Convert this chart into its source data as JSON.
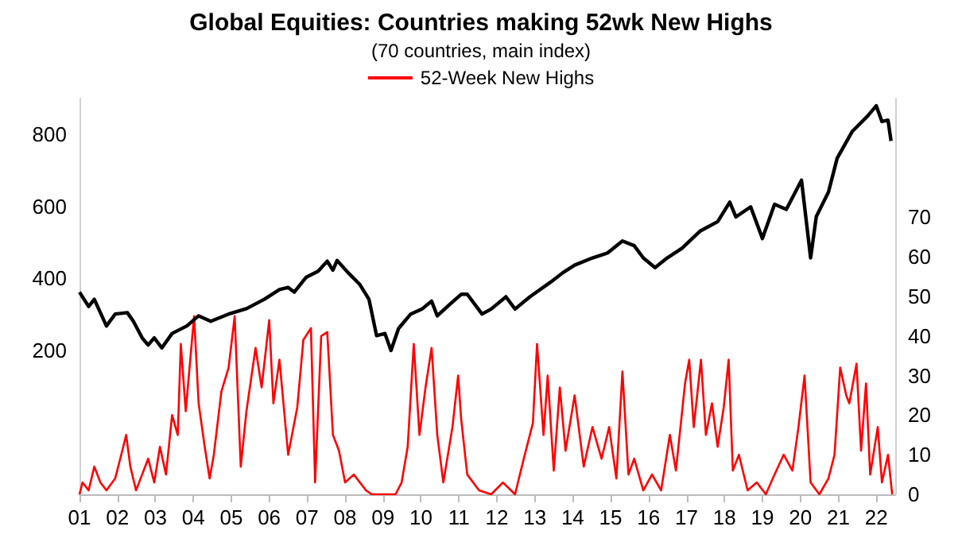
{
  "chart_data": {
    "type": "line",
    "title": "Global Equities: Countries making 52wk New Highs",
    "subtitle": "(70 countries, main index)",
    "xlim": [
      2001,
      2022.5
    ],
    "xticks": [
      {
        "value": 2001,
        "label": "01"
      },
      {
        "value": 2002,
        "label": "02"
      },
      {
        "value": 2003,
        "label": "03"
      },
      {
        "value": 2004,
        "label": "04"
      },
      {
        "value": 2005,
        "label": "05"
      },
      {
        "value": 2006,
        "label": "06"
      },
      {
        "value": 2007,
        "label": "07"
      },
      {
        "value": 2008,
        "label": "08"
      },
      {
        "value": 2009,
        "label": "09"
      },
      {
        "value": 2010,
        "label": "10"
      },
      {
        "value": 2011,
        "label": "11"
      },
      {
        "value": 2012,
        "label": "12"
      },
      {
        "value": 2013,
        "label": "13"
      },
      {
        "value": 2014,
        "label": "14"
      },
      {
        "value": 2015,
        "label": "15"
      },
      {
        "value": 2016,
        "label": "16"
      },
      {
        "value": 2017,
        "label": "17"
      },
      {
        "value": 2018,
        "label": "18"
      },
      {
        "value": 2019,
        "label": "19"
      },
      {
        "value": 2020,
        "label": "20"
      },
      {
        "value": 2021,
        "label": "21"
      },
      {
        "value": 2022,
        "label": "22"
      }
    ],
    "ylim": [
      -200,
      900
    ],
    "yticks": [
      200,
      400,
      600,
      800
    ],
    "y2lim": [
      0,
      100
    ],
    "y2ticks": [
      0,
      10,
      20,
      30,
      40,
      50,
      60,
      70
    ],
    "grid": false,
    "legend": "top",
    "marker": "none",
    "line_style": "solid",
    "series": [
      {
        "color": "#000000",
        "axis": "y",
        "x": [
          2001.0,
          2001.24,
          2001.39,
          2001.71,
          2001.94,
          2002.26,
          2002.42,
          2002.65,
          2002.81,
          2002.97,
          2003.17,
          2003.44,
          2003.83,
          2004.14,
          2004.46,
          2004.93,
          2005.4,
          2005.87,
          2006.27,
          2006.5,
          2006.66,
          2006.97,
          2007.29,
          2007.53,
          2007.68,
          2007.79,
          2008.08,
          2008.39,
          2008.63,
          2008.83,
          2009.05,
          2009.21,
          2009.41,
          2009.73,
          2010.04,
          2010.28,
          2010.43,
          2010.75,
          2011.06,
          2011.22,
          2011.61,
          2011.85,
          2012.24,
          2012.48,
          2012.87,
          2013.42,
          2013.74,
          2014.05,
          2014.52,
          2014.92,
          2015.31,
          2015.62,
          2015.86,
          2016.17,
          2016.49,
          2016.88,
          2017.35,
          2017.82,
          2018.14,
          2018.3,
          2018.69,
          2019.0,
          2019.32,
          2019.63,
          2020.03,
          2020.27,
          2020.42,
          2020.74,
          2020.97,
          2021.37,
          2021.76,
          2022.0,
          2022.15,
          2022.31,
          2022.39
        ],
        "values": [
          362,
          322,
          342,
          268,
          301,
          305,
          281,
          235,
          215,
          235,
          207,
          247,
          268,
          296,
          281,
          301,
          316,
          342,
          369,
          375,
          362,
          403,
          420,
          448,
          423,
          450,
          416,
          383,
          342,
          241,
          247,
          200,
          261,
          301,
          316,
          337,
          296,
          327,
          356,
          356,
          301,
          315,
          349,
          315,
          349,
          390,
          416,
          437,
          457,
          471,
          504,
          491,
          457,
          430,
          457,
          484,
          531,
          558,
          612,
          571,
          599,
          511,
          606,
          592,
          673,
          457,
          572,
          640,
          734,
          809,
          850,
          880,
          836,
          840,
          782
        ]
      },
      {
        "name": "52-Week New Highs",
        "color": "#ff0000",
        "axis": "y2",
        "x": [
          2001.0,
          2001.08,
          2001.24,
          2001.39,
          2001.55,
          2001.71,
          2001.94,
          2002.1,
          2002.23,
          2002.34,
          2002.49,
          2002.65,
          2002.81,
          2002.97,
          2003.12,
          2003.28,
          2003.44,
          2003.59,
          2003.67,
          2003.8,
          2003.91,
          2004.02,
          2004.14,
          2004.3,
          2004.43,
          2004.54,
          2004.74,
          2004.93,
          2005.09,
          2005.25,
          2005.4,
          2005.64,
          2005.8,
          2006.0,
          2006.11,
          2006.27,
          2006.5,
          2006.74,
          2006.9,
          2007.1,
          2007.21,
          2007.37,
          2007.53,
          2007.68,
          2007.84,
          2008.0,
          2008.23,
          2008.55,
          2008.7,
          2009.33,
          2009.49,
          2009.65,
          2009.81,
          2009.96,
          2010.12,
          2010.28,
          2010.43,
          2010.59,
          2010.83,
          2010.98,
          2011.06,
          2011.22,
          2011.53,
          2011.85,
          2012.16,
          2012.48,
          2012.71,
          2012.95,
          2013.06,
          2013.23,
          2013.34,
          2013.5,
          2013.66,
          2013.81,
          2014.05,
          2014.29,
          2014.52,
          2014.76,
          2014.96,
          2015.15,
          2015.31,
          2015.47,
          2015.62,
          2015.86,
          2016.09,
          2016.33,
          2016.56,
          2016.72,
          2016.96,
          2017.07,
          2017.19,
          2017.38,
          2017.51,
          2017.67,
          2017.82,
          2017.98,
          2018.11,
          2018.22,
          2018.38,
          2018.61,
          2018.85,
          2019.09,
          2019.32,
          2019.56,
          2019.79,
          2019.95,
          2020.11,
          2020.27,
          2020.5,
          2020.74,
          2020.9,
          2021.05,
          2021.21,
          2021.29,
          2021.48,
          2021.6,
          2021.73,
          2021.84,
          2022.04,
          2022.15,
          2022.31,
          2022.42
        ],
        "values": [
          0,
          3,
          1,
          7,
          3,
          1,
          4,
          10,
          15,
          7,
          1,
          5,
          9,
          3,
          12,
          5,
          20,
          15,
          38,
          21,
          33,
          45,
          23,
          12,
          4,
          10,
          26,
          32,
          45,
          7,
          21,
          37,
          27,
          44,
          23,
          34,
          10,
          22,
          39,
          42,
          3,
          40,
          41,
          15,
          11,
          3,
          5,
          1,
          0,
          0,
          3,
          12,
          38,
          15,
          27,
          37,
          15,
          3,
          17,
          30,
          19,
          5,
          1,
          0,
          3,
          0,
          9,
          18,
          38,
          15,
          30,
          6,
          27,
          11,
          25,
          7,
          17,
          9,
          17,
          4,
          31,
          5,
          9,
          1,
          5,
          1,
          15,
          6,
          28,
          34,
          17,
          34,
          15,
          23,
          12,
          22,
          34,
          6,
          10,
          1,
          3,
          0,
          5,
          10,
          6,
          17,
          30,
          3,
          0,
          4,
          10,
          32,
          25,
          23,
          33,
          11,
          28,
          5,
          17,
          3,
          10,
          0
        ]
      }
    ]
  }
}
